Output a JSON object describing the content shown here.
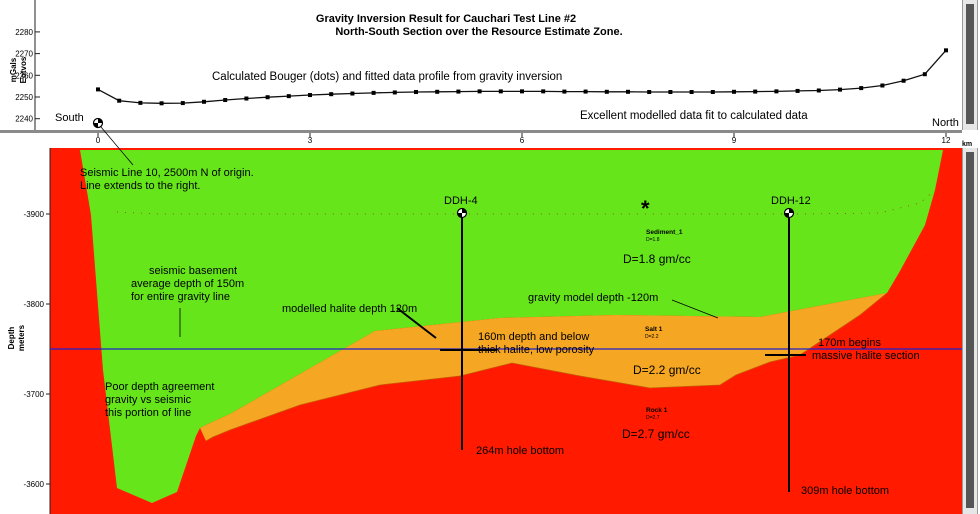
{
  "window": {
    "title": "Gravity Inversion Result for Cauchari Test Line #2"
  },
  "top_panel": {
    "title": "Gravity Inversion Result for Cauchari Test Line #2",
    "subtitle": "North-South Section over the Resource Estimate Zone.",
    "y_unit_1": "mGals",
    "y_unit_2": "Eotvos",
    "profile_caption": "Calculated Bouger (dots) and fitted data profile from gravity inversion",
    "fit_caption": "Excellent modelled data fit to calculated data",
    "south_label": "South",
    "north_label": "North",
    "x_ticks": [
      "0",
      "3",
      "6",
      "9",
      "12"
    ],
    "x_unit": "km",
    "y_ticks": [
      "2280",
      "2270",
      "2260",
      "2250",
      "2240"
    ]
  },
  "section_panel": {
    "y_label_1": "Depth",
    "y_label_2": "meters",
    "y_ticks": [
      "-3900",
      "-3800",
      "-3700",
      "-3600"
    ],
    "colors": {
      "rock": "#ff1a00",
      "sediment": "#66e61a",
      "salt": "#f5a623",
      "waterline": "#2222cc",
      "drill": "#000000"
    },
    "annotations": {
      "seismic_note_1": "Seismic Line 10, 2500m N of origin.",
      "seismic_note_2": "Line extends to the right.",
      "basement_1": "seismic basement",
      "basement_2": "average depth of 150m",
      "basement_3": "for entire gravity line",
      "poor_1": "Poor depth agreement",
      "poor_2": "gravity vs seismic",
      "poor_3": "this portion of line",
      "halite_depth": "modelled halite depth 120m",
      "gravity_depth": "gravity model depth -120m",
      "thick_1": "160m depth and below",
      "thick_2": "thick halite, low porosity",
      "massive_1": "170m begins",
      "massive_2": "massive halite section",
      "sediment_label": "Sediment_1",
      "sediment_density_small": "D=1.8",
      "sediment_density": "D=1.8 gm/cc",
      "salt_label": "Salt 1",
      "salt_density_small": "D=2.2",
      "salt_density": "D=2.2 gm/cc",
      "rock_label": "Rock 1",
      "rock_density_small": "D=2.7",
      "rock_density": "D=2.7 gm/cc",
      "star": "*",
      "ddh4": "DDH-4",
      "ddh12": "DDH-12",
      "ddh4_bottom": "264m hole bottom",
      "ddh12_bottom": "309m hole bottom"
    }
  },
  "chart_data": {
    "type": "line",
    "title": "Gravity Inversion Result for Cauchari Test Line #2",
    "subtitle": "North-South Section over the Resource Estimate Zone.",
    "xlabel": "km",
    "ylabel": "mGals",
    "xlim": [
      0,
      12
    ],
    "ylim": [
      2240,
      2280
    ],
    "x_ticks": [
      0,
      3,
      6,
      9,
      12
    ],
    "series": [
      {
        "x": [
          0.0,
          0.3,
          0.6,
          0.9,
          1.2,
          1.5,
          1.8,
          2.1,
          2.4,
          2.7,
          3.0,
          3.3,
          3.6,
          3.9,
          4.2,
          4.5,
          4.8,
          5.1,
          5.4,
          5.7,
          6.0,
          6.3,
          6.6,
          6.9,
          7.2,
          7.5,
          7.8,
          8.1,
          8.4,
          8.7,
          9.0,
          9.3,
          9.6,
          9.9,
          10.2,
          10.5,
          10.8,
          11.1,
          11.4,
          11.7,
          12.0
        ],
        "values": [
          2253.5,
          2248.3,
          2247.3,
          2247.1,
          2247.2,
          2247.8,
          2248.6,
          2249.3,
          2249.9,
          2250.4,
          2250.9,
          2251.3,
          2251.6,
          2251.9,
          2252.1,
          2252.3,
          2252.4,
          2252.5,
          2252.6,
          2252.6,
          2252.6,
          2252.6,
          2252.5,
          2252.5,
          2252.4,
          2252.4,
          2252.3,
          2252.3,
          2252.3,
          2252.3,
          2252.4,
          2252.5,
          2252.6,
          2252.8,
          2253.0,
          2253.4,
          2254.1,
          2255.3,
          2257.5,
          2260.5,
          2271.5
        ]
      }
    ],
    "section": {
      "ylabel": "Depth meters",
      "x_ticks": [
        0,
        3,
        6,
        9,
        12
      ],
      "y_ticks": [
        -3900,
        -3800,
        -3700,
        -3600
      ],
      "ylim": [
        -3960,
        -3580
      ],
      "water_level_depth": -3748,
      "drill_holes": [
        {
          "name": "DDH-4",
          "x": 5.25,
          "top": -3902,
          "bottom_label": "264m hole bottom"
        },
        {
          "name": "DDH-12",
          "x": 9.85,
          "top": -3902,
          "bottom_label": "309m hole bottom"
        }
      ],
      "layers": [
        {
          "name": "Sediment_1",
          "density": 1.8
        },
        {
          "name": "Salt 1",
          "density": 2.2
        },
        {
          "name": "Rock 1",
          "density": 2.7
        }
      ]
    }
  }
}
